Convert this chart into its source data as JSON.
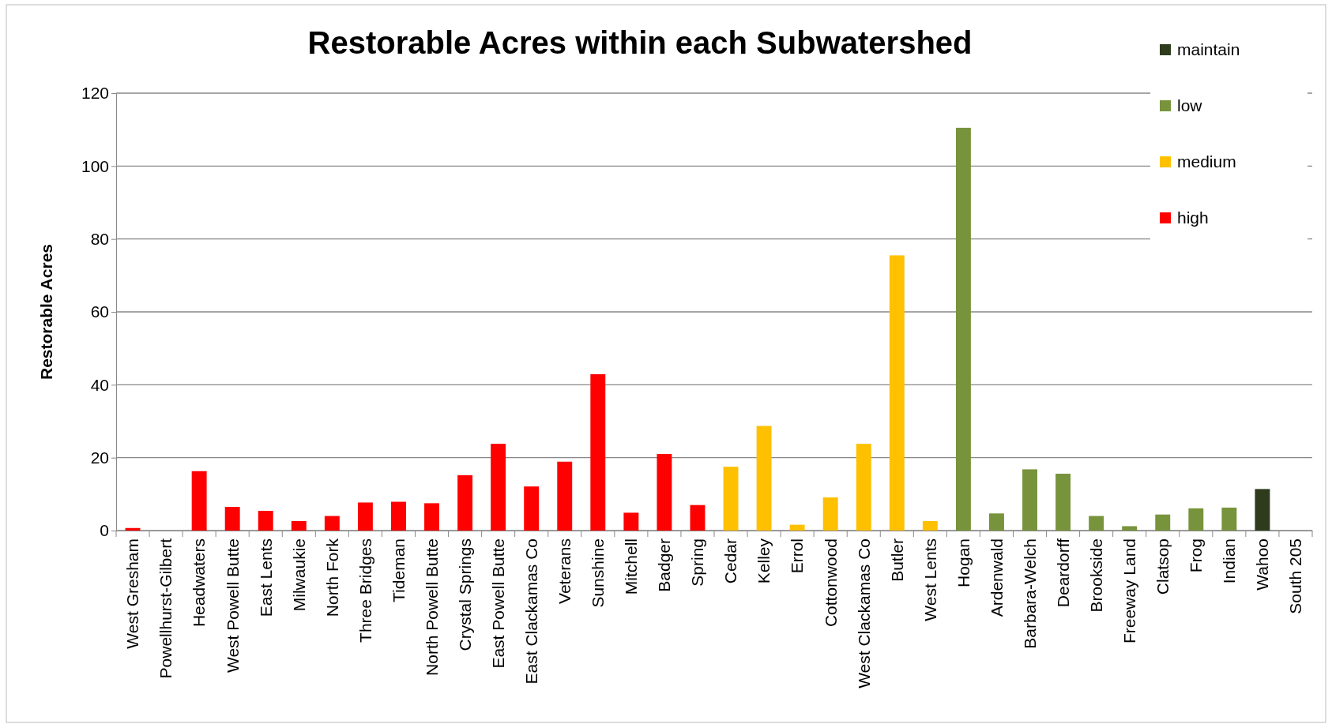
{
  "chart_data": {
    "type": "bar",
    "title": "Restorable Acres within each Subwatershed",
    "ylabel": "Restorable Acres",
    "categories": [
      "West Gresham",
      "Powellhurst-Gilbert",
      "Headwaters",
      "West Powell Butte",
      "East Lents",
      "Milwaukie",
      "North Fork",
      "Three Bridges",
      "Tideman",
      "North Powell Butte",
      "Crystal Springs",
      "East Powell Butte",
      "East Clackamas Co",
      "Veterans",
      "Sunshine",
      "Mitchell",
      "Badger",
      "Spring",
      "Cedar",
      "Kelley",
      "Errol",
      "Cottonwood",
      "West Clackamas Co",
      "Butler",
      "West Lents",
      "Hogan",
      "Ardenwald",
      "Barbara-Welch",
      "Deardorff",
      "Brookside",
      "Freeway Land",
      "Clatsop",
      "Frog",
      "Indian",
      "Wahoo",
      "South 205"
    ],
    "stacked": true,
    "series": [
      {
        "name": "maintain",
        "color": "#2e3b1d",
        "values": [
          null,
          null,
          null,
          null,
          null,
          null,
          null,
          null,
          null,
          null,
          null,
          null,
          null,
          null,
          null,
          null,
          null,
          null,
          null,
          null,
          null,
          null,
          null,
          null,
          null,
          null,
          null,
          null,
          null,
          null,
          null,
          null,
          null,
          null,
          11.4,
          null
        ]
      },
      {
        "name": "low",
        "color": "#77933c",
        "values": [
          null,
          null,
          null,
          null,
          null,
          null,
          null,
          null,
          null,
          null,
          null,
          null,
          null,
          null,
          null,
          null,
          null,
          null,
          null,
          null,
          null,
          null,
          null,
          null,
          null,
          110.5,
          4.7,
          16.8,
          15.6,
          4.0,
          1.2,
          4.4,
          6.1,
          6.3,
          null,
          0
        ]
      },
      {
        "name": "medium",
        "color": "#ffc000",
        "values": [
          null,
          null,
          null,
          null,
          null,
          null,
          null,
          null,
          null,
          null,
          null,
          null,
          null,
          null,
          null,
          null,
          null,
          null,
          17.5,
          28.7,
          1.6,
          9.1,
          23.8,
          75.5,
          2.6,
          null,
          null,
          null,
          null,
          null,
          null,
          null,
          null,
          null,
          null,
          null
        ]
      },
      {
        "name": "high",
        "color": "#ff0000",
        "values": [
          0.7,
          0,
          16.3,
          6.5,
          5.4,
          2.6,
          4.0,
          7.7,
          7.9,
          7.5,
          15.2,
          23.8,
          12.1,
          18.9,
          42.9,
          4.9,
          21.0,
          7.0,
          null,
          null,
          null,
          null,
          null,
          null,
          null,
          null,
          null,
          null,
          null,
          null,
          null,
          null,
          null,
          null,
          null,
          null
        ]
      }
    ],
    "ylim": [
      0,
      120
    ],
    "yticks": [
      0,
      20,
      40,
      60,
      80,
      100,
      120
    ],
    "grid": "y",
    "legend": "top right"
  }
}
